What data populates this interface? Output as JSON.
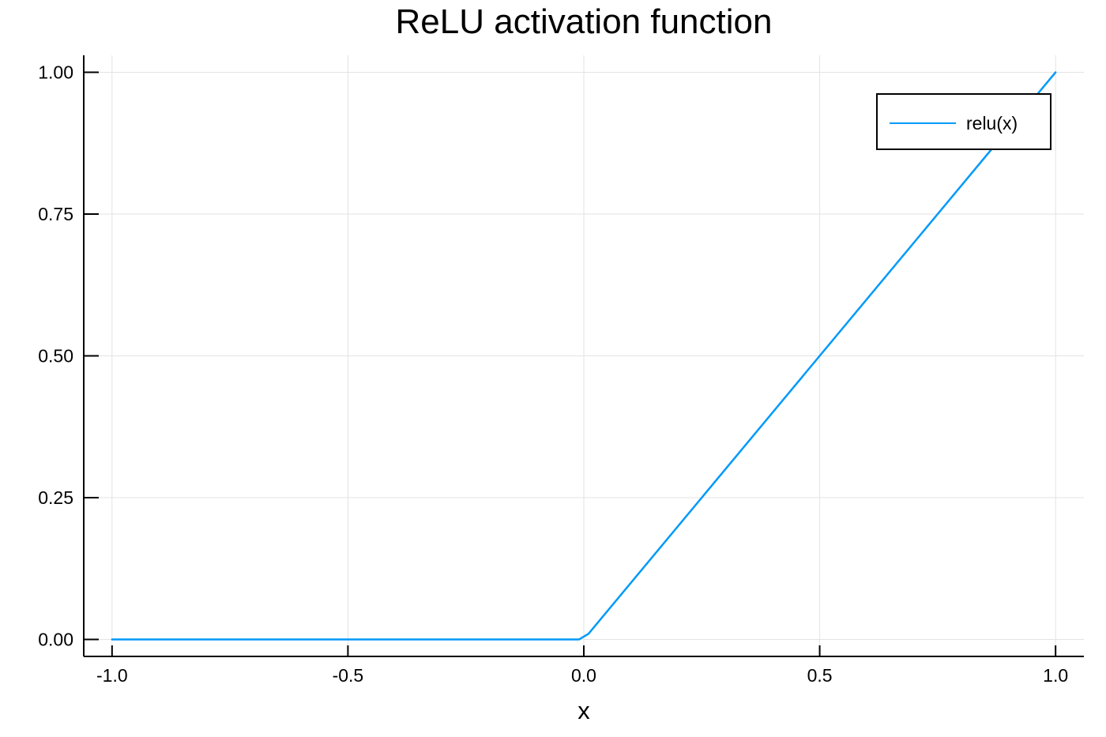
{
  "chart_data": {
    "type": "line",
    "title": "ReLU activation function",
    "xlabel": "x",
    "ylabel": "",
    "xlim": [
      -1.06,
      1.06
    ],
    "ylim": [
      -0.03,
      1.03
    ],
    "xticks": [
      -1.0,
      -0.5,
      0.0,
      0.5,
      1.0
    ],
    "xtick_labels": [
      "-1.0",
      "-0.5",
      "0.0",
      "0.5",
      "1.0"
    ],
    "yticks": [
      0.0,
      0.25,
      0.5,
      0.75,
      1.0
    ],
    "ytick_labels": [
      "0.00",
      "0.25",
      "0.50",
      "0.75",
      "1.00"
    ],
    "grid": true,
    "legend": {
      "position": "top-right"
    },
    "series": [
      {
        "name": "relu(x)",
        "color": "#009af9",
        "x": [
          -1.0,
          -0.01,
          0.01,
          1.0
        ],
        "y": [
          0.0,
          0.0,
          0.01,
          1.0
        ]
      }
    ]
  }
}
